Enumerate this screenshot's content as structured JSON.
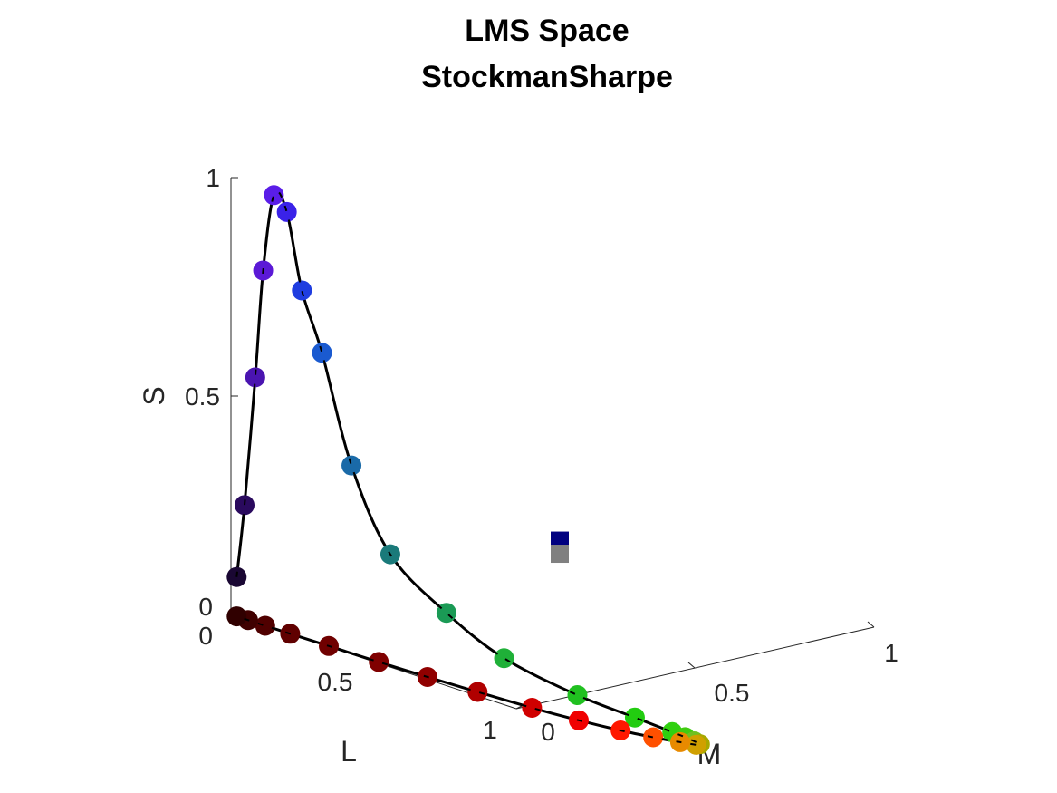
{
  "chart_data": {
    "type": "scatter3d",
    "title": [
      "LMS Space",
      "StockmanSharpe"
    ],
    "axes": {
      "L": {
        "label": "L",
        "range": [
          0,
          1
        ],
        "ticks": [
          "0.5",
          "1"
        ]
      },
      "M": {
        "label": "M",
        "range": [
          0,
          1
        ],
        "ticks": [
          "0",
          "0.5",
          "1"
        ]
      },
      "S": {
        "label": "S",
        "range": [
          0,
          1
        ],
        "ticks": [
          "0",
          "0.5",
          "1"
        ]
      },
      "corner_tick": "0"
    },
    "grid": false,
    "locus_points": [
      {
        "L": 0.02,
        "M": 0.0,
        "S": 0.09,
        "color": "#1a0733"
      },
      {
        "L": 0.04,
        "M": 0.01,
        "S": 0.26,
        "color": "#2a0a5e"
      },
      {
        "L": 0.07,
        "M": 0.02,
        "S": 0.56,
        "color": "#4a14b0"
      },
      {
        "L": 0.09,
        "M": 0.03,
        "S": 0.81,
        "color": "#5b19d6"
      },
      {
        "L": 0.12,
        "M": 0.04,
        "S": 0.99,
        "color": "#5a1de8"
      },
      {
        "L": 0.15,
        "M": 0.06,
        "S": 0.96,
        "color": "#3a22e8"
      },
      {
        "L": 0.18,
        "M": 0.09,
        "S": 0.79,
        "color": "#1f3de0"
      },
      {
        "L": 0.22,
        "M": 0.13,
        "S": 0.66,
        "color": "#1a5ad0"
      },
      {
        "L": 0.27,
        "M": 0.2,
        "S": 0.42,
        "color": "#1a6aa8"
      },
      {
        "L": 0.33,
        "M": 0.3,
        "S": 0.24,
        "color": "#1a7a7a"
      },
      {
        "L": 0.42,
        "M": 0.44,
        "S": 0.14,
        "color": "#1a9a55"
      },
      {
        "L": 0.5,
        "M": 0.6,
        "S": 0.07,
        "color": "#1fb038"
      },
      {
        "L": 0.62,
        "M": 0.78,
        "S": 0.03,
        "color": "#20c020"
      },
      {
        "L": 0.73,
        "M": 0.9,
        "S": 0.015,
        "color": "#22cc10"
      },
      {
        "L": 0.8,
        "M": 0.98,
        "S": 0.005,
        "color": "#30d010"
      },
      {
        "L": 0.83,
        "M": 1.0,
        "S": 0.002,
        "color": "#40cc10"
      },
      {
        "L": 0.87,
        "M": 0.99,
        "S": 0.0,
        "color": "#70c020"
      },
      {
        "L": 0.92,
        "M": 0.95,
        "S": 0.0,
        "color": "#a8a800"
      },
      {
        "L": 0.96,
        "M": 0.88,
        "S": 0.0,
        "color": "#d0a000"
      },
      {
        "L": 0.98,
        "M": 0.78,
        "S": 0.0,
        "color": "#e88a00"
      },
      {
        "L": 1.0,
        "M": 0.63,
        "S": 0.0,
        "color": "#ff5000"
      },
      {
        "L": 1.0,
        "M": 0.48,
        "S": 0.0,
        "color": "#ff1800"
      },
      {
        "L": 0.96,
        "M": 0.34,
        "S": 0.0,
        "color": "#f00000"
      },
      {
        "L": 0.88,
        "M": 0.23,
        "S": 0.0,
        "color": "#d00000"
      },
      {
        "L": 0.75,
        "M": 0.15,
        "S": 0.0,
        "color": "#b00000"
      },
      {
        "L": 0.62,
        "M": 0.09,
        "S": 0.0,
        "color": "#900000"
      },
      {
        "L": 0.48,
        "M": 0.05,
        "S": 0.0,
        "color": "#800000"
      },
      {
        "L": 0.32,
        "M": 0.03,
        "S": 0.0,
        "color": "#700000"
      },
      {
        "L": 0.2,
        "M": 0.01,
        "S": 0.0,
        "color": "#600000"
      },
      {
        "L": 0.12,
        "M": 0.0,
        "S": 0.0,
        "color": "#500000"
      },
      {
        "L": 0.06,
        "M": 0.0,
        "S": 0.0,
        "color": "#400000"
      },
      {
        "L": 0.02,
        "M": 0.0,
        "S": 0.0,
        "color": "#300000"
      }
    ],
    "square_markers": [
      {
        "L": 0.68,
        "M": 0.62,
        "S": 0.38,
        "color": "#000080"
      },
      {
        "L": 0.68,
        "M": 0.62,
        "S": 0.35,
        "color": "#808080"
      }
    ]
  }
}
